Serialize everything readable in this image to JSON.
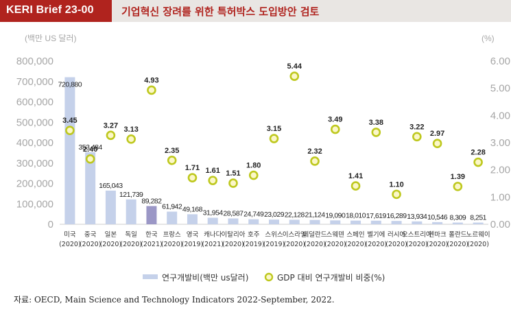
{
  "header": {
    "brief_label": "KERI Brief 23-00",
    "title": "기업혁신 장려를 위한 특허박스 도입방안 검토"
  },
  "source": "자료: OECD, Main Science and Technology Indicators 2022-September, 2022.",
  "colors": {
    "brand": "#b0231e",
    "header_bg": "#e9e6e3",
    "bar": "#c5d1ea",
    "bar_highlight": "#9b97c6",
    "marker_fill": "#fbf7c8",
    "marker_stroke": "#bec81e"
  },
  "chart_data": {
    "type": "bar",
    "left_unit": "(백만 US 달러)",
    "right_unit": "(%)",
    "ylim_left": [
      0,
      800000
    ],
    "ylim_right": [
      0,
      6
    ],
    "left_ticks": [
      "0",
      "100,000",
      "200,000",
      "300,000",
      "400,000",
      "500,000",
      "600,000",
      "700,000",
      "800,000"
    ],
    "right_ticks": [
      "0.00",
      "1.00",
      "2.00",
      "3.00",
      "4.00",
      "5.00",
      "6.00"
    ],
    "categories": [
      {
        "name": "미국",
        "year": "(2020)"
      },
      {
        "name": "중국",
        "year": "(2020)"
      },
      {
        "name": "일본",
        "year": "(2020)"
      },
      {
        "name": "독일",
        "year": "(2020)"
      },
      {
        "name": "한국",
        "year": "(2021)"
      },
      {
        "name": "프랑스",
        "year": "(2020)"
      },
      {
        "name": "영국",
        "year": "(2019)"
      },
      {
        "name": "캐나다",
        "year": "(2021)"
      },
      {
        "name": "이탈리아",
        "year": "(2020)"
      },
      {
        "name": "호주",
        "year": "(2019)"
      },
      {
        "name": "스위스",
        "year": "(2019)"
      },
      {
        "name": "이스라엘",
        "year": "(2020)"
      },
      {
        "name": "네덜란드",
        "year": "(2020)"
      },
      {
        "name": "스웨덴",
        "year": "(2020)"
      },
      {
        "name": "스페인",
        "year": "(2020)"
      },
      {
        "name": "벨기에",
        "year": "(2020)"
      },
      {
        "name": "러시아",
        "year": "(2020)"
      },
      {
        "name": "오스트리아",
        "year": "(2020)"
      },
      {
        "name": "덴마크",
        "year": "(2020)"
      },
      {
        "name": "폴란드",
        "year": "(2020)"
      },
      {
        "name": "노르웨이",
        "year": "(2020)"
      }
    ],
    "series": [
      {
        "name": "연구개발비(백만 us달러)",
        "axis": "left",
        "kind": "bar",
        "values": [
          720880,
          353484,
          165043,
          121739,
          89282,
          61942,
          49168,
          31954,
          28587,
          24749,
          23029,
          22128,
          21124,
          19090,
          18010,
          17619,
          16289,
          13934,
          10546,
          8309,
          8251
        ],
        "labels": [
          "720,880",
          "353,484",
          "165,043",
          "121,739",
          "89,282",
          "61,942",
          "49,168",
          "31,954",
          "28,587",
          "24,749",
          "23,029",
          "22,128",
          "21,124",
          "19,090",
          "18,010",
          "17,619",
          "16,289",
          "13,934",
          "10,546",
          "8,309",
          "8,251"
        ],
        "highlight_index": 4
      },
      {
        "name": "GDP 대비 연구개발비 비중(%)",
        "axis": "right",
        "kind": "marker",
        "values": [
          3.45,
          2.4,
          3.27,
          3.13,
          4.93,
          2.35,
          1.71,
          1.61,
          1.51,
          1.8,
          3.15,
          5.44,
          2.32,
          3.49,
          1.41,
          3.38,
          1.1,
          3.22,
          2.97,
          1.39,
          2.28
        ],
        "labels": [
          "3.45",
          "2.40",
          "3.27",
          "3.13",
          "4.93",
          "2.35",
          "1.71",
          "1.61",
          "1.51",
          "1.80",
          "3.15",
          "5.44",
          "2.32",
          "3.49",
          "1.41",
          "3.38",
          "1.10",
          "3.22",
          "2.97",
          "1.39",
          "2.28"
        ]
      }
    ],
    "legend": {
      "position": "bottom",
      "bar_label": "연구개발비(백만 us달러)",
      "marker_label": "GDP 대비 연구개발비 비중(%)"
    }
  }
}
